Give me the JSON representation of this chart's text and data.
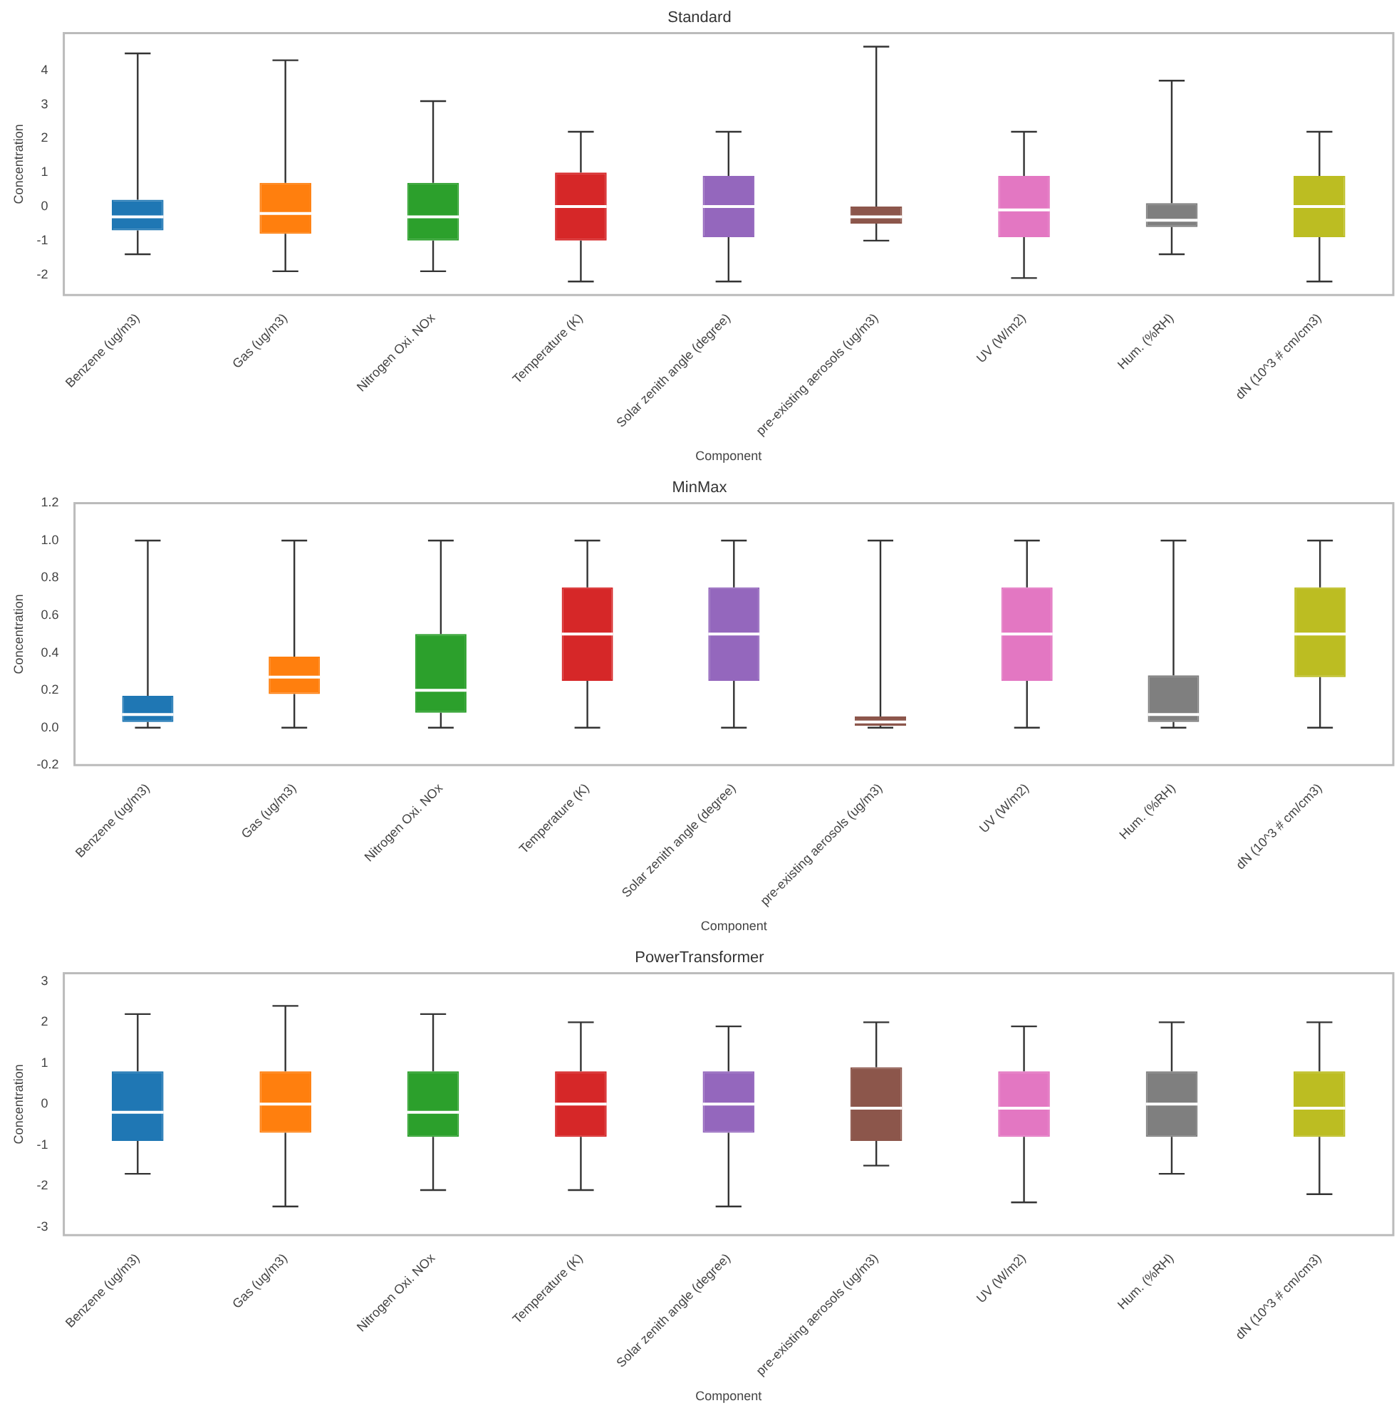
{
  "chart_data": [
    {
      "type": "box",
      "title": "Standard",
      "xlabel": "Component",
      "ylabel": "Concentration",
      "categories": [
        "Benzene (ug/m3)",
        "Gas (ug/m3)",
        "Nitrogen Oxi. NOx",
        "Temperature (K)",
        "Solar zenith angle (degree)",
        "pre-existing aerosols (ug/m3)",
        "UV (W/m2)",
        "Hum. (%RH)",
        "dN (10^3 # cm/cm3)"
      ],
      "colors": [
        "#1f77b4",
        "#ff7f0e",
        "#2ca02c",
        "#d62728",
        "#9467bd",
        "#8c564b",
        "#e377c2",
        "#7f7f7f",
        "#bcbd22"
      ],
      "boxes": [
        {
          "low": -1.4,
          "q1": -0.7,
          "median": -0.3,
          "q3": 0.2,
          "high": 4.5
        },
        {
          "low": -1.9,
          "q1": -0.8,
          "median": -0.2,
          "q3": 0.7,
          "high": 4.3
        },
        {
          "low": -1.9,
          "q1": -1.0,
          "median": -0.3,
          "q3": 0.7,
          "high": 3.1
        },
        {
          "low": -2.2,
          "q1": -1.0,
          "median": 0,
          "q3": 1.0,
          "high": 2.2
        },
        {
          "low": -2.2,
          "q1": -0.9,
          "median": 0,
          "q3": 0.9,
          "high": 2.2
        },
        {
          "low": -1.0,
          "q1": -0.5,
          "median": -0.3,
          "q3": 0,
          "high": 4.7
        },
        {
          "low": -2.1,
          "q1": -0.9,
          "median": -0.1,
          "q3": 0.9,
          "high": 2.2
        },
        {
          "low": -1.4,
          "q1": -0.6,
          "median": -0.4,
          "q3": 0.1,
          "high": 3.7
        },
        {
          "low": -2.2,
          "q1": -0.9,
          "median": 0,
          "q3": 0.9,
          "high": 2.2
        }
      ],
      "ylim": [
        -2.6,
        5.1
      ],
      "yticks": [
        -2,
        -1,
        0,
        1,
        2,
        3,
        4
      ]
    },
    {
      "type": "box",
      "title": "MinMax",
      "xlabel": "Component",
      "ylabel": "Concentration",
      "categories": [
        "Benzene (ug/m3)",
        "Gas (ug/m3)",
        "Nitrogen Oxi. NOx",
        "Temperature (K)",
        "Solar zenith angle (degree)",
        "pre-existing aerosols (ug/m3)",
        "UV (W/m2)",
        "Hum. (%RH)",
        "dN (10^3 # cm/cm3)"
      ],
      "colors": [
        "#1f77b4",
        "#ff7f0e",
        "#2ca02c",
        "#d62728",
        "#9467bd",
        "#8c564b",
        "#e377c2",
        "#7f7f7f",
        "#bcbd22"
      ],
      "boxes": [
        {
          "low": 0,
          "q1": 0.03,
          "median": 0.07,
          "q3": 0.17,
          "high": 1.0
        },
        {
          "low": 0,
          "q1": 0.18,
          "median": 0.27,
          "q3": 0.38,
          "high": 1.0
        },
        {
          "low": 0,
          "q1": 0.08,
          "median": 0.2,
          "q3": 0.5,
          "high": 1.0
        },
        {
          "low": 0,
          "q1": 0.25,
          "median": 0.5,
          "q3": 0.75,
          "high": 1.0
        },
        {
          "low": 0,
          "q1": 0.25,
          "median": 0.5,
          "q3": 0.75,
          "high": 1.0
        },
        {
          "low": 0,
          "q1": 0.01,
          "median": 0.03,
          "q3": 0.06,
          "high": 1.0
        },
        {
          "low": 0,
          "q1": 0.25,
          "median": 0.5,
          "q3": 0.75,
          "high": 1.0
        },
        {
          "low": 0,
          "q1": 0.03,
          "median": 0.07,
          "q3": 0.28,
          "high": 1.0
        },
        {
          "low": 0,
          "q1": 0.27,
          "median": 0.5,
          "q3": 0.75,
          "high": 1.0
        }
      ],
      "ylim": [
        -0.2,
        1.2
      ],
      "yticks": [
        {
          "value": -0.2,
          "label": "-0.2"
        },
        {
          "value": 0,
          "label": "0.0"
        },
        {
          "value": 0.2,
          "label": "0.2"
        },
        {
          "value": 0.4,
          "label": "0.4"
        },
        {
          "value": 0.6,
          "label": "0.6"
        },
        {
          "value": 0.8,
          "label": "0.8"
        },
        {
          "value": 1,
          "label": "1.0"
        },
        {
          "value": 1.2,
          "label": "1.2"
        }
      ]
    },
    {
      "type": "box",
      "title": "PowerTransformer",
      "xlabel": "Component",
      "ylabel": "Concentration",
      "categories": [
        "Benzene (ug/m3)",
        "Gas (ug/m3)",
        "Nitrogen Oxi. NOx",
        "Temperature (K)",
        "Solar zenith angle (degree)",
        "pre-existing aerosols (ug/m3)",
        "UV (W/m2)",
        "Hum. (%RH)",
        "dN (10^3 # cm/cm3)"
      ],
      "colors": [
        "#1f77b4",
        "#ff7f0e",
        "#2ca02c",
        "#d62728",
        "#9467bd",
        "#8c564b",
        "#e377c2",
        "#7f7f7f",
        "#bcbd22"
      ],
      "boxes": [
        {
          "low": -1.7,
          "q1": -0.9,
          "median": -0.2,
          "q3": 0.8,
          "high": 2.2
        },
        {
          "low": -2.5,
          "q1": -0.7,
          "median": 0,
          "q3": 0.8,
          "high": 2.4
        },
        {
          "low": -2.1,
          "q1": -0.8,
          "median": -0.2,
          "q3": 0.8,
          "high": 2.2
        },
        {
          "low": -2.1,
          "q1": -0.8,
          "median": 0,
          "q3": 0.8,
          "high": 2.0
        },
        {
          "low": -2.5,
          "q1": -0.7,
          "median": 0,
          "q3": 0.8,
          "high": 1.9
        },
        {
          "low": -1.5,
          "q1": -0.9,
          "median": -0.1,
          "q3": 0.9,
          "high": 2.0
        },
        {
          "low": -2.4,
          "q1": -0.8,
          "median": -0.1,
          "q3": 0.8,
          "high": 1.9
        },
        {
          "low": -1.7,
          "q1": -0.8,
          "median": 0,
          "q3": 0.8,
          "high": 2.0
        },
        {
          "low": -2.2,
          "q1": -0.8,
          "median": -0.1,
          "q3": 0.8,
          "high": 2.0
        }
      ],
      "ylim": [
        -3.2,
        3.2
      ],
      "yticks": [
        -3,
        -2,
        -1,
        0,
        1,
        2,
        3
      ]
    }
  ]
}
